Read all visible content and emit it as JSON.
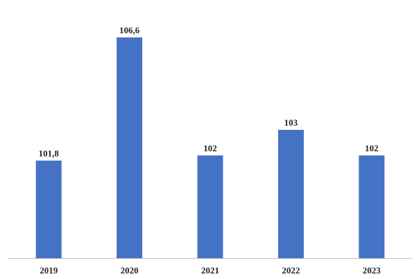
{
  "chart_data": {
    "type": "bar",
    "categories": [
      "2019",
      "2020",
      "2021",
      "2022",
      "2023"
    ],
    "values": [
      101.8,
      106.6,
      102,
      103,
      102
    ],
    "value_labels": [
      "101,8",
      "106,6",
      "102",
      "103",
      "102"
    ],
    "title": "",
    "xlabel": "",
    "ylabel": "",
    "ylim": [
      98,
      107.3
    ],
    "grid": false,
    "legend": "none",
    "bar_color": "#4472C4",
    "axis_color": "#BFBFBF"
  }
}
